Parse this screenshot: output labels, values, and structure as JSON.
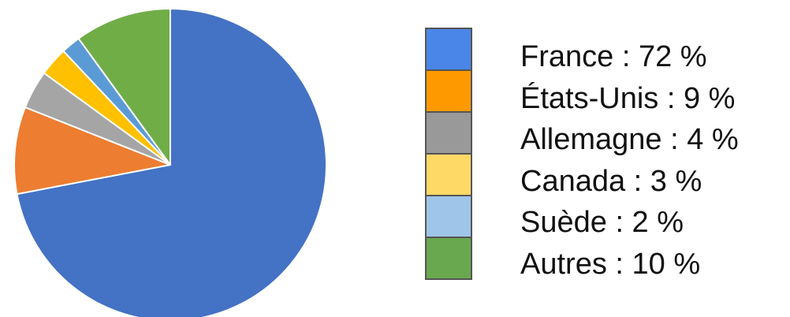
{
  "chart_data": {
    "type": "pie",
    "title": "",
    "slices": [
      {
        "label": "France",
        "value": 72,
        "legend": "France : 72 %",
        "color": "#4472c4",
        "swatch_color": "#4a86e8"
      },
      {
        "label": "États-Unis",
        "value": 9,
        "legend": "États-Unis : 9 %",
        "color": "#ed7d31",
        "swatch_color": "#ff9900"
      },
      {
        "label": "Allemagne",
        "value": 4,
        "legend": "Allemagne : 4 %",
        "color": "#a5a5a5",
        "swatch_color": "#999999"
      },
      {
        "label": "Canada",
        "value": 3,
        "legend": "Canada : 3 %",
        "color": "#ffc000",
        "swatch_color": "#ffd966"
      },
      {
        "label": "Suède",
        "value": 2,
        "legend": "Suède : 2 %",
        "color": "#5b9bd5",
        "swatch_color": "#9fc5e8"
      },
      {
        "label": "Autres",
        "value": 10,
        "legend": "Autres : 10 %",
        "color": "#70ad47",
        "swatch_color": "#6aa84f"
      }
    ],
    "start": "12 o'clock",
    "direction": "clockwise",
    "legend_position": "right"
  }
}
